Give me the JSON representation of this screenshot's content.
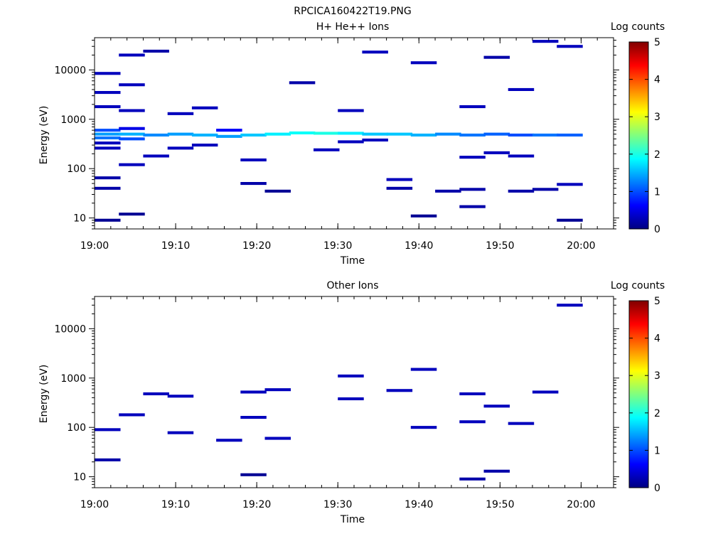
{
  "figure": {
    "title": "RPCICA160422T19.PNG"
  },
  "chart_data": [
    {
      "type": "heatmap",
      "title": "H+ He++ Ions",
      "xlabel": "Time",
      "ylabel": "Energy (eV)",
      "yscale": "log",
      "ylim": [
        6,
        45000
      ],
      "xlim": [
        "19:00",
        "20:04"
      ],
      "xticks": [
        "19:00",
        "19:10",
        "19:20",
        "19:30",
        "19:40",
        "19:50",
        "20:00"
      ],
      "yticks": [
        "10",
        "100",
        "1000",
        "10000"
      ],
      "colorbar": {
        "label": "Log counts",
        "range": [
          0,
          5
        ],
        "ticks": [
          "0",
          "1",
          "2",
          "3",
          "4",
          "5"
        ]
      },
      "cells": [
        {
          "t": "19:00",
          "e": 9,
          "v": 0.1
        },
        {
          "t": "19:00",
          "e": 40,
          "v": 0.2
        },
        {
          "t": "19:00",
          "e": 65,
          "v": 0.2
        },
        {
          "t": "19:00",
          "e": 260,
          "v": 0.3
        },
        {
          "t": "19:00",
          "e": 330,
          "v": 0.3
        },
        {
          "t": "19:00",
          "e": 420,
          "v": 1.2
        },
        {
          "t": "19:00",
          "e": 500,
          "v": 1.4
        },
        {
          "t": "19:00",
          "e": 600,
          "v": 1.0
        },
        {
          "t": "19:00",
          "e": 1800,
          "v": 0.3
        },
        {
          "t": "19:00",
          "e": 3500,
          "v": 0.3
        },
        {
          "t": "19:00",
          "e": 8500,
          "v": 0.3
        },
        {
          "t": "19:03",
          "e": 12,
          "v": 0.1
        },
        {
          "t": "19:03",
          "e": 120,
          "v": 0.3
        },
        {
          "t": "19:03",
          "e": 400,
          "v": 1.0
        },
        {
          "t": "19:03",
          "e": 500,
          "v": 1.5
        },
        {
          "t": "19:03",
          "e": 650,
          "v": 0.5
        },
        {
          "t": "19:03",
          "e": 1500,
          "v": 0.3
        },
        {
          "t": "19:03",
          "e": 5000,
          "v": 0.3
        },
        {
          "t": "19:03",
          "e": 20000,
          "v": 0.3
        },
        {
          "t": "19:06",
          "e": 180,
          "v": 0.3
        },
        {
          "t": "19:06",
          "e": 480,
          "v": 1.3
        },
        {
          "t": "19:06",
          "e": 24000,
          "v": 0.2
        },
        {
          "t": "19:09",
          "e": 260,
          "v": 0.3
        },
        {
          "t": "19:09",
          "e": 500,
          "v": 1.4
        },
        {
          "t": "19:09",
          "e": 1300,
          "v": 0.3
        },
        {
          "t": "19:12",
          "e": 300,
          "v": 0.3
        },
        {
          "t": "19:12",
          "e": 480,
          "v": 1.5
        },
        {
          "t": "19:12",
          "e": 1700,
          "v": 0.3
        },
        {
          "t": "19:15",
          "e": 450,
          "v": 1.4
        },
        {
          "t": "19:15",
          "e": 600,
          "v": 0.6
        },
        {
          "t": "19:18",
          "e": 50,
          "v": 0.2
        },
        {
          "t": "19:18",
          "e": 150,
          "v": 0.3
        },
        {
          "t": "19:18",
          "e": 480,
          "v": 1.6
        },
        {
          "t": "19:21",
          "e": 35,
          "v": 0.1
        },
        {
          "t": "19:21",
          "e": 500,
          "v": 1.8
        },
        {
          "t": "19:24",
          "e": 530,
          "v": 1.9
        },
        {
          "t": "19:24",
          "e": 5500,
          "v": 0.2
        },
        {
          "t": "19:27",
          "e": 240,
          "v": 0.3
        },
        {
          "t": "19:27",
          "e": 520,
          "v": 2.0
        },
        {
          "t": "19:30",
          "e": 350,
          "v": 0.3
        },
        {
          "t": "19:30",
          "e": 520,
          "v": 1.8
        },
        {
          "t": "19:30",
          "e": 1500,
          "v": 0.3
        },
        {
          "t": "19:33",
          "e": 380,
          "v": 0.3
        },
        {
          "t": "19:33",
          "e": 500,
          "v": 1.6
        },
        {
          "t": "19:33",
          "e": 23000,
          "v": 0.3
        },
        {
          "t": "19:36",
          "e": 40,
          "v": 0.2
        },
        {
          "t": "19:36",
          "e": 60,
          "v": 0.3
        },
        {
          "t": "19:36",
          "e": 500,
          "v": 1.6
        },
        {
          "t": "19:39",
          "e": 11,
          "v": 0.1
        },
        {
          "t": "19:39",
          "e": 480,
          "v": 1.5
        },
        {
          "t": "19:39",
          "e": 14000,
          "v": 0.3
        },
        {
          "t": "19:42",
          "e": 35,
          "v": 0.2
        },
        {
          "t": "19:42",
          "e": 500,
          "v": 1.3
        },
        {
          "t": "19:45",
          "e": 17,
          "v": 0.2
        },
        {
          "t": "19:45",
          "e": 38,
          "v": 0.2
        },
        {
          "t": "19:45",
          "e": 170,
          "v": 0.3
        },
        {
          "t": "19:45",
          "e": 480,
          "v": 1.2
        },
        {
          "t": "19:45",
          "e": 1800,
          "v": 0.3
        },
        {
          "t": "19:48",
          "e": 210,
          "v": 0.3
        },
        {
          "t": "19:48",
          "e": 500,
          "v": 1.1
        },
        {
          "t": "19:48",
          "e": 18000,
          "v": 0.2
        },
        {
          "t": "19:51",
          "e": 35,
          "v": 0.2
        },
        {
          "t": "19:51",
          "e": 180,
          "v": 0.3
        },
        {
          "t": "19:51",
          "e": 480,
          "v": 1.0
        },
        {
          "t": "19:51",
          "e": 4000,
          "v": 0.3
        },
        {
          "t": "19:54",
          "e": 38,
          "v": 0.2
        },
        {
          "t": "19:54",
          "e": 480,
          "v": 1.2
        },
        {
          "t": "19:54",
          "e": 38000,
          "v": 0.3
        },
        {
          "t": "19:57",
          "e": 9,
          "v": 0.1
        },
        {
          "t": "19:57",
          "e": 48,
          "v": 0.3
        },
        {
          "t": "19:57",
          "e": 480,
          "v": 1.1
        },
        {
          "t": "19:57",
          "e": 30000,
          "v": 0.3
        }
      ]
    },
    {
      "type": "heatmap",
      "title": "Other Ions",
      "xlabel": "Time",
      "ylabel": "Energy (eV)",
      "yscale": "log",
      "ylim": [
        6,
        45000
      ],
      "xlim": [
        "19:00",
        "20:04"
      ],
      "xticks": [
        "19:00",
        "19:10",
        "19:20",
        "19:30",
        "19:40",
        "19:50",
        "20:00"
      ],
      "yticks": [
        "10",
        "100",
        "1000",
        "10000"
      ],
      "colorbar": {
        "label": "Log counts",
        "range": [
          0,
          5
        ],
        "ticks": [
          "0",
          "1",
          "2",
          "3",
          "4",
          "5"
        ]
      },
      "cells": [
        {
          "t": "19:00",
          "e": 22,
          "v": 0.2
        },
        {
          "t": "19:00",
          "e": 90,
          "v": 0.3
        },
        {
          "t": "19:03",
          "e": 180,
          "v": 0.3
        },
        {
          "t": "19:06",
          "e": 480,
          "v": 0.3
        },
        {
          "t": "19:09",
          "e": 430,
          "v": 0.3
        },
        {
          "t": "19:09",
          "e": 78,
          "v": 0.3
        },
        {
          "t": "19:15",
          "e": 55,
          "v": 0.3
        },
        {
          "t": "19:18",
          "e": 11,
          "v": 0.1
        },
        {
          "t": "19:18",
          "e": 160,
          "v": 0.3
        },
        {
          "t": "19:18",
          "e": 520,
          "v": 0.3
        },
        {
          "t": "19:21",
          "e": 60,
          "v": 0.3
        },
        {
          "t": "19:21",
          "e": 580,
          "v": 0.3
        },
        {
          "t": "19:30",
          "e": 380,
          "v": 0.3
        },
        {
          "t": "19:30",
          "e": 1100,
          "v": 0.3
        },
        {
          "t": "19:36",
          "e": 560,
          "v": 0.3
        },
        {
          "t": "19:39",
          "e": 100,
          "v": 0.3
        },
        {
          "t": "19:39",
          "e": 1500,
          "v": 0.3
        },
        {
          "t": "19:45",
          "e": 9,
          "v": 0.2
        },
        {
          "t": "19:45",
          "e": 130,
          "v": 0.3
        },
        {
          "t": "19:45",
          "e": 480,
          "v": 0.3
        },
        {
          "t": "19:48",
          "e": 13,
          "v": 0.2
        },
        {
          "t": "19:48",
          "e": 270,
          "v": 0.3
        },
        {
          "t": "19:51",
          "e": 120,
          "v": 0.3
        },
        {
          "t": "19:54",
          "e": 520,
          "v": 0.3
        },
        {
          "t": "19:57",
          "e": 30000,
          "v": 0.3
        }
      ]
    }
  ]
}
